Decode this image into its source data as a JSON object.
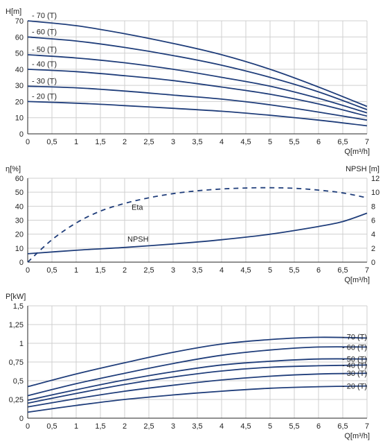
{
  "style": {
    "curve_color": "#1f3d7a",
    "grid_color": "#cfcfcf",
    "text_color": "#222222"
  },
  "chart_data": [
    {
      "type": "line",
      "ylabel": "H[m]",
      "xlabel": "Q[m³/h]",
      "xlim": [
        0,
        7
      ],
      "ylim": [
        0,
        70
      ],
      "x_ticks": [
        "0",
        "0,5",
        "1",
        "1,5",
        "2",
        "2,5",
        "3",
        "3,5",
        "4",
        "4,5",
        "5",
        "5,5",
        "6",
        "6,5",
        "7"
      ],
      "y_ticks": [
        "0",
        "10",
        "20",
        "30",
        "40",
        "50",
        "60",
        "70"
      ],
      "grid": true,
      "x": [
        0,
        1,
        2,
        3,
        4,
        5,
        6,
        7
      ],
      "series": [
        {
          "name": "- 70 (T)",
          "values": [
            70,
            67,
            62,
            56,
            49,
            40,
            29,
            17
          ]
        },
        {
          "name": "- 60 (T)",
          "values": [
            60,
            57.5,
            53.5,
            48.5,
            42.5,
            35,
            26,
            15
          ]
        },
        {
          "name": "- 50 (T)",
          "values": [
            49,
            47,
            44,
            40,
            35,
            29.5,
            22,
            13
          ]
        },
        {
          "name": "- 40 (T)",
          "values": [
            40,
            38.5,
            36,
            33,
            29,
            24.5,
            18.5,
            11
          ]
        },
        {
          "name": "- 30 (T)",
          "values": [
            29.5,
            28.5,
            26.5,
            24,
            21.5,
            18,
            13.5,
            8.5
          ]
        },
        {
          "name": "- 20 (T)",
          "values": [
            20,
            19,
            17.5,
            15.8,
            14,
            11.5,
            8.5,
            5
          ]
        }
      ]
    },
    {
      "type": "line",
      "ylabel": "η[%]",
      "y2label": "NPSH [m]",
      "xlabel": "Q[m³/h]",
      "xlim": [
        0,
        7
      ],
      "ylim": [
        0,
        60
      ],
      "y2lim": [
        0,
        12
      ],
      "x_ticks": [
        "0",
        "0,5",
        "1",
        "1,5",
        "2",
        "2,5",
        "3",
        "3,5",
        "4",
        "4,5",
        "5",
        "5,5",
        "6",
        "6,5",
        "7"
      ],
      "y_ticks": [
        "0",
        "10",
        "20",
        "30",
        "40",
        "50",
        "60"
      ],
      "y2_ticks": [
        "0",
        "2",
        "4",
        "6",
        "8",
        "10",
        "12"
      ],
      "grid": true,
      "series": [
        {
          "name": "Eta",
          "axis": "left",
          "dashed": true,
          "x": [
            0,
            0.5,
            1,
            1.5,
            2,
            2.5,
            3,
            3.5,
            4,
            4.5,
            5,
            5.5,
            6,
            6.5,
            7
          ],
          "values": [
            0,
            16,
            28,
            36.5,
            42,
            46,
            49,
            51,
            52.3,
            53,
            53.2,
            52.8,
            51.5,
            49.5,
            46
          ]
        },
        {
          "name": "NPSH",
          "axis": "right",
          "dashed": false,
          "x": [
            0,
            1,
            2,
            3,
            4,
            5,
            6,
            6.5,
            7
          ],
          "values": [
            1.2,
            1.7,
            2.1,
            2.6,
            3.2,
            4,
            5.1,
            5.8,
            7
          ]
        }
      ]
    },
    {
      "type": "line",
      "ylabel": "P[kW]",
      "xlabel": "Q[m³/h]",
      "xlim": [
        0,
        7
      ],
      "ylim": [
        0,
        1.5
      ],
      "x_ticks": [
        "0",
        "0,5",
        "1",
        "1,5",
        "2",
        "2,5",
        "3",
        "3,5",
        "4",
        "4,5",
        "5",
        "5,5",
        "6",
        "6,5",
        "7"
      ],
      "y_ticks": [
        "0",
        "0,25",
        "0,5",
        "0,75",
        "1",
        "1,25",
        "1,5"
      ],
      "grid": true,
      "x": [
        0,
        1,
        2,
        3,
        4,
        5,
        6,
        7
      ],
      "series": [
        {
          "name": "- 70 (T)",
          "values": [
            0.42,
            0.59,
            0.74,
            0.88,
            0.99,
            1.05,
            1.08,
            1.07
          ]
        },
        {
          "name": "- 60 (T)",
          "values": [
            0.3,
            0.46,
            0.6,
            0.73,
            0.84,
            0.91,
            0.95,
            0.95
          ]
        },
        {
          "name": "- 50 (T)",
          "values": [
            0.24,
            0.38,
            0.51,
            0.62,
            0.71,
            0.76,
            0.79,
            0.79
          ]
        },
        {
          "name": "- 40 (T)",
          "values": [
            0.2,
            0.33,
            0.45,
            0.55,
            0.63,
            0.68,
            0.7,
            0.71
          ]
        },
        {
          "name": "- 30 (T)",
          "values": [
            0.15,
            0.26,
            0.36,
            0.44,
            0.51,
            0.56,
            0.59,
            0.6
          ]
        },
        {
          "name": "- 20 (T)",
          "values": [
            0.08,
            0.17,
            0.25,
            0.31,
            0.36,
            0.4,
            0.42,
            0.43
          ]
        }
      ]
    }
  ]
}
